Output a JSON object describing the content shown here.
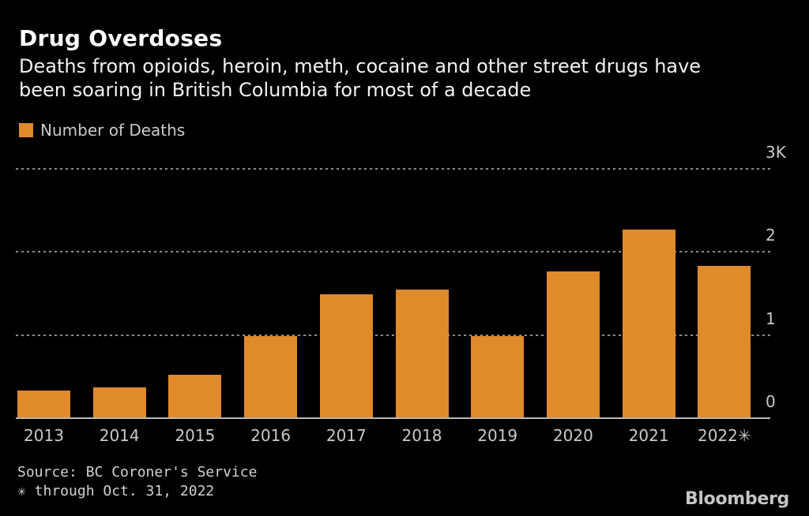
{
  "header": {
    "title": "Drug Overdoses",
    "subtitle_lines": [
      "Deaths from opioids, heroin, meth, cocaine and other street drugs have",
      "been soaring in British Columbia for most of a decade"
    ]
  },
  "legend": {
    "label": "Number of Deaths",
    "swatch_color": "#DF8A2B"
  },
  "chart_data": {
    "type": "bar",
    "title": "Drug Overdoses",
    "subtitle": "Deaths from opioids, heroin, meth, cocaine and other street drugs have been soaring in British Columbia for most of a decade",
    "series_name": "Number of Deaths",
    "categories": [
      "2013",
      "2014",
      "2015",
      "2016",
      "2017",
      "2018",
      "2019",
      "2020",
      "2021",
      "2022"
    ],
    "xtick_labels": [
      "2013",
      "2014",
      "2015",
      "2016",
      "2017",
      "2018",
      "2019",
      "2020",
      "2021",
      "2022✳"
    ],
    "values": [
      330,
      370,
      525,
      985,
      1495,
      1550,
      990,
      1770,
      2265,
      1830
    ],
    "xlabel": "",
    "ylabel": "",
    "ylim": [
      0,
      3000
    ],
    "yticks": [
      0,
      1000,
      2000,
      3000
    ],
    "ytick_labels": [
      "0",
      "1",
      "2",
      "3K"
    ],
    "grid": "dotted horizontal, behind bars",
    "legend_position": "top-left",
    "bar_color": "#DF8A2B",
    "background_color": "#000000",
    "text_color": "#c9c9c9"
  },
  "footer": {
    "source": "Source: BC Coroner's Service",
    "note": "✳ through Oct. 31, 2022",
    "brand": "Bloomberg"
  }
}
